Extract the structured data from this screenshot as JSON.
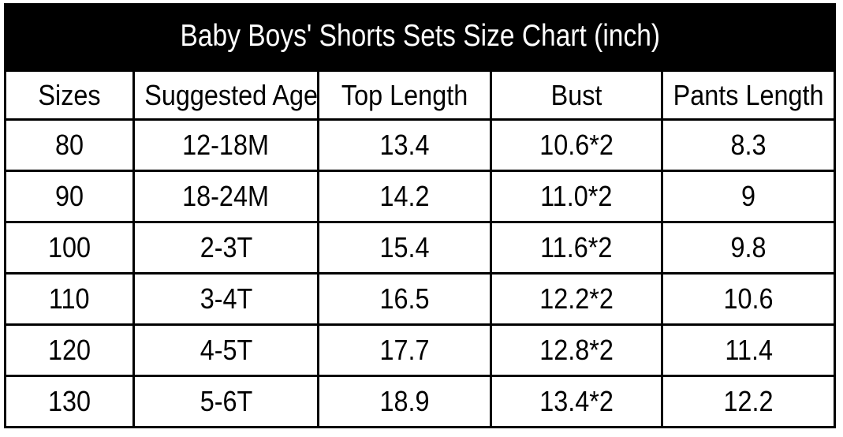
{
  "title": "Baby Boys' Shorts Sets Size Chart (inch)",
  "unit_label": "inch",
  "colors": {
    "title_bg": "#000000",
    "title_text": "#ffffff",
    "border": "#000000",
    "cell_text": "#000000",
    "background": "#ffffff"
  },
  "chart_data": {
    "type": "table",
    "title": "Baby Boys' Shorts Sets Size Chart (inch)",
    "columns": [
      "Sizes",
      "Suggested Age",
      "Top Length",
      "Bust",
      "Pants Length"
    ],
    "rows": [
      [
        "80",
        "12-18M",
        "13.4",
        "10.6*2",
        "8.3"
      ],
      [
        "90",
        "18-24M",
        "14.2",
        "11.0*2",
        "9"
      ],
      [
        "100",
        "2-3T",
        "15.4",
        "11.6*2",
        "9.8"
      ],
      [
        "110",
        "3-4T",
        "16.5",
        "12.2*2",
        "10.6"
      ],
      [
        "120",
        "4-5T",
        "17.7",
        "12.8*2",
        "11.4"
      ],
      [
        "130",
        "5-6T",
        "18.9",
        "13.4*2",
        "12.2"
      ]
    ]
  }
}
